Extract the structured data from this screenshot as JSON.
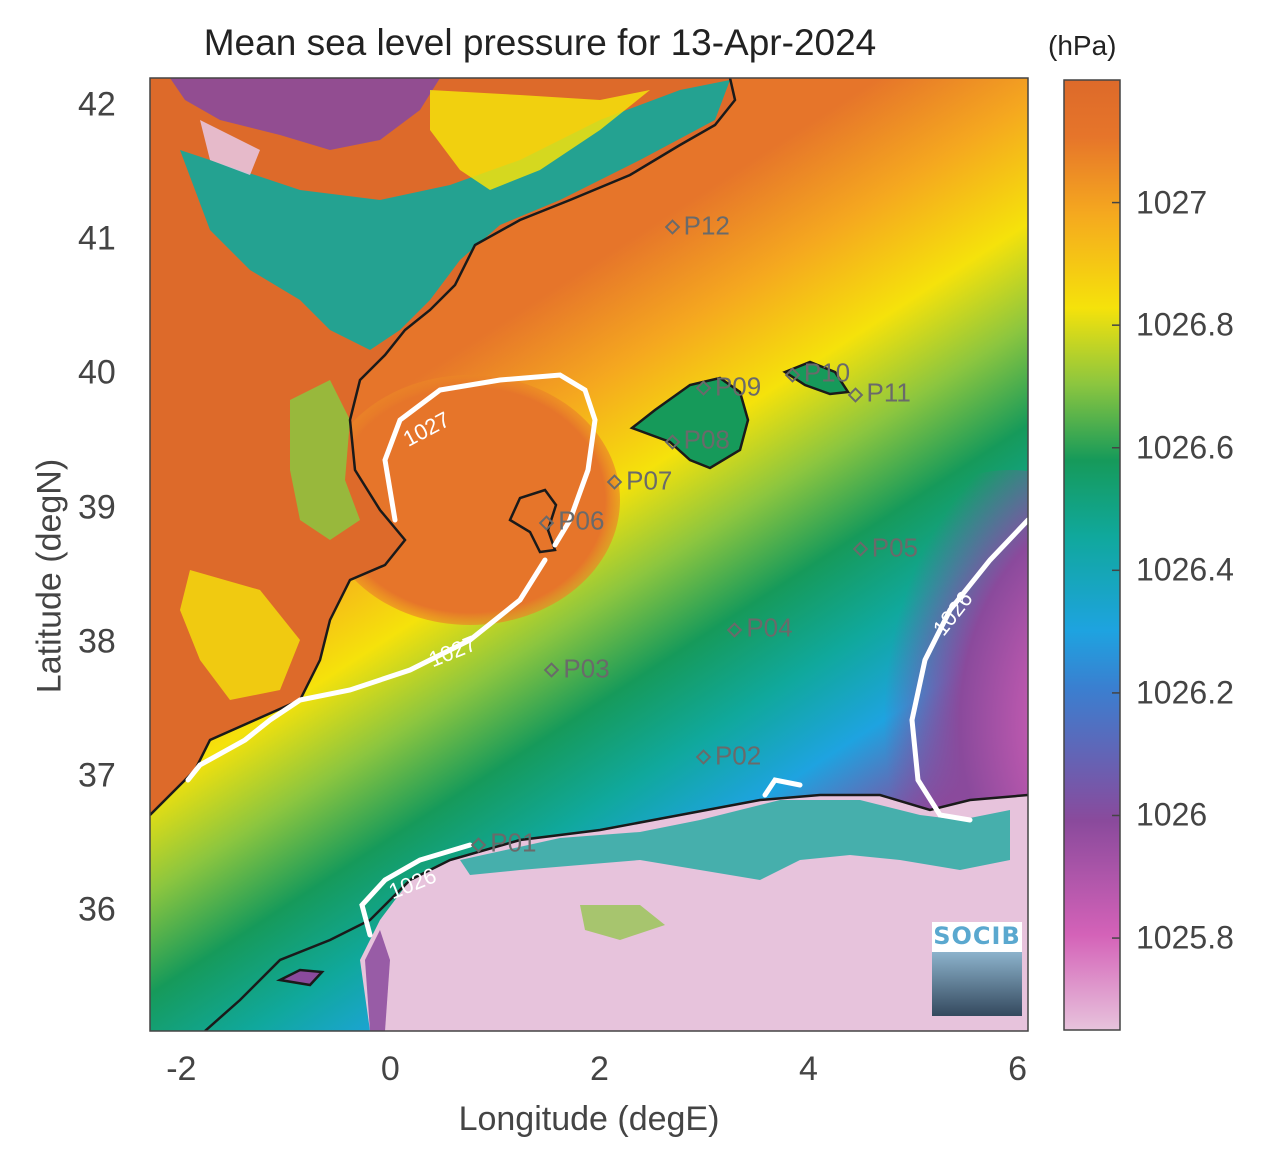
{
  "title": "Mean sea level pressure for 13-Apr-2024",
  "colorbar_unit": "(hPa)",
  "xlabel": "Longitude (degE)",
  "ylabel": "Latitude (degN)",
  "x_ticks": [
    "-2",
    "0",
    "2",
    "4",
    "6"
  ],
  "y_ticks": [
    "42",
    "41",
    "40",
    "39",
    "38",
    "37",
    "36"
  ],
  "colorbar_ticks": [
    "1027",
    "1026.8",
    "1026.6",
    "1026.4",
    "1026.2",
    "1026",
    "1025.8"
  ],
  "logo_text": "SOCIB",
  "colors": {
    "land": "#dd6a2a",
    "pressure_high": "#e6752a",
    "pressure_low": "#e7c3dc",
    "coastline": "#1a1a1a",
    "contour": "#ffffff",
    "station": "#6a6a6a"
  },
  "chart_data": {
    "type": "heatmap",
    "title": "Mean sea level pressure for 13-Apr-2024",
    "xlabel": "Longitude (degE)",
    "ylabel": "Latitude (degN)",
    "xlim": [
      -2.3,
      6.1
    ],
    "ylim": [
      35.1,
      42.2
    ],
    "color_range": [
      1025.65,
      1027.2
    ],
    "colormap": [
      "#e7c3dc",
      "#d462b8",
      "#8a4a9c",
      "#1ea3e0",
      "#10a89c",
      "#169a5a",
      "#8cc63f",
      "#f5e20b",
      "#f5a81f",
      "#e6752a",
      "#dd6a2a"
    ],
    "contour_levels": [
      {
        "value": "1027",
        "label": "1027"
      },
      {
        "value": "1026",
        "label": "1026"
      }
    ],
    "stations": [
      {
        "name": "P01",
        "lon": 0.85,
        "lat": 36.5
      },
      {
        "name": "P02",
        "lon": 3.0,
        "lat": 37.15
      },
      {
        "name": "P03",
        "lon": 1.55,
        "lat": 37.8
      },
      {
        "name": "P04",
        "lon": 3.3,
        "lat": 38.1
      },
      {
        "name": "P05",
        "lon": 4.5,
        "lat": 38.7
      },
      {
        "name": "P06",
        "lon": 1.5,
        "lat": 38.9
      },
      {
        "name": "P07",
        "lon": 2.15,
        "lat": 39.2
      },
      {
        "name": "P08",
        "lon": 2.7,
        "lat": 39.5
      },
      {
        "name": "P09",
        "lon": 3.0,
        "lat": 39.9
      },
      {
        "name": "P10",
        "lon": 3.85,
        "lat": 40.0
      },
      {
        "name": "P11",
        "lon": 4.45,
        "lat": 39.85
      },
      {
        "name": "P12",
        "lon": 2.7,
        "lat": 41.1
      }
    ]
  }
}
